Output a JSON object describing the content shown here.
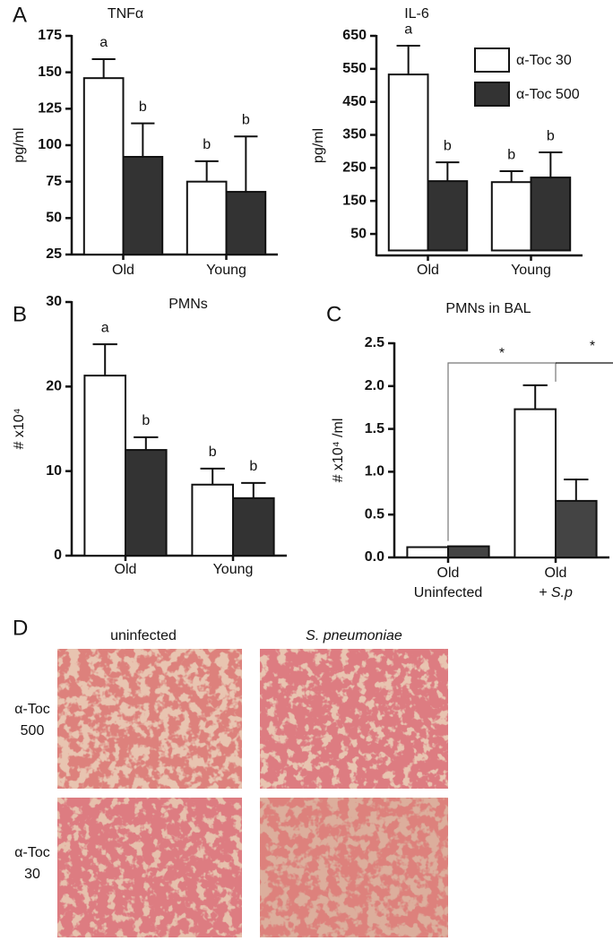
{
  "chart_data": [
    {
      "type": "bar",
      "panel": "A",
      "title": "TNFα",
      "y_label": "pg/ml",
      "categories": [
        "Old",
        "Young"
      ],
      "series": [
        {
          "color": "#ffffff",
          "values": [
            146,
            75
          ],
          "errors": [
            13,
            14
          ],
          "letters": [
            "a",
            "b"
          ]
        },
        {
          "color": "#333333",
          "values": [
            92,
            68
          ],
          "errors": [
            23,
            38
          ],
          "letters": [
            "b",
            "b"
          ]
        }
      ],
      "ylim": [
        25,
        175
      ],
      "yticks": [
        25,
        50,
        75,
        100,
        125,
        150,
        175
      ]
    },
    {
      "type": "bar",
      "title": "IL-6",
      "y_label": "pg/ml",
      "categories": [
        "Old",
        "Young"
      ],
      "series": [
        {
          "name": "α-Toc 30",
          "color": "#ffffff",
          "values": [
            533,
            207
          ],
          "errors": [
            87,
            33
          ],
          "letters": [
            "a",
            "b"
          ]
        },
        {
          "name": "α-Toc 500",
          "color": "#333333",
          "values": [
            210,
            221
          ],
          "errors": [
            57,
            76
          ],
          "letters": [
            "b",
            "b"
          ]
        }
      ],
      "ylim": [
        -15,
        650
      ],
      "yticks": [
        50,
        150,
        250,
        350,
        450,
        550,
        650
      ],
      "legend": "upper right"
    },
    {
      "type": "bar",
      "panel": "B",
      "title": "PMNs",
      "y_label": "# x10⁴",
      "categories": [
        "Old",
        "Young"
      ],
      "series": [
        {
          "color": "#ffffff",
          "values": [
            21.3,
            8.4
          ],
          "errors": [
            3.7,
            1.9
          ],
          "letters": [
            "a",
            "b"
          ]
        },
        {
          "color": "#333333",
          "values": [
            12.5,
            6.8
          ],
          "errors": [
            1.5,
            1.8
          ],
          "letters": [
            "b",
            "b"
          ]
        }
      ],
      "ylim": [
        0,
        30
      ],
      "yticks": [
        0,
        10,
        20,
        30
      ]
    },
    {
      "type": "bar",
      "panel": "C",
      "title": "PMNs in BAL",
      "y_label": "# x10⁴ /ml",
      "categories": [
        [
          "Old",
          "Uninfected"
        ],
        [
          "Old",
          "+ S.p"
        ]
      ],
      "series": [
        {
          "color": "#ffffff",
          "values": [
            0.12,
            1.73
          ],
          "errors": [
            0,
            0.28
          ]
        },
        {
          "color": "#444444",
          "values": [
            0.13,
            0.66
          ],
          "errors": [
            0,
            0.25
          ]
        }
      ],
      "ylim": [
        0,
        2.5
      ],
      "yticks": [
        {
          "value": 0,
          "label": "0.0"
        },
        0.5,
        {
          "value": 1,
          "label": "1.0"
        },
        1.5,
        {
          "value": 2,
          "label": "2.0"
        },
        2.5
      ],
      "annotations": [
        "*",
        "*"
      ]
    }
  ],
  "panel_d": {
    "panel": "D",
    "columns": [
      "uninfected",
      "S. pneumoniae"
    ],
    "rows": [
      [
        "α-Toc",
        "500"
      ],
      [
        "α-Toc",
        "30"
      ]
    ]
  }
}
